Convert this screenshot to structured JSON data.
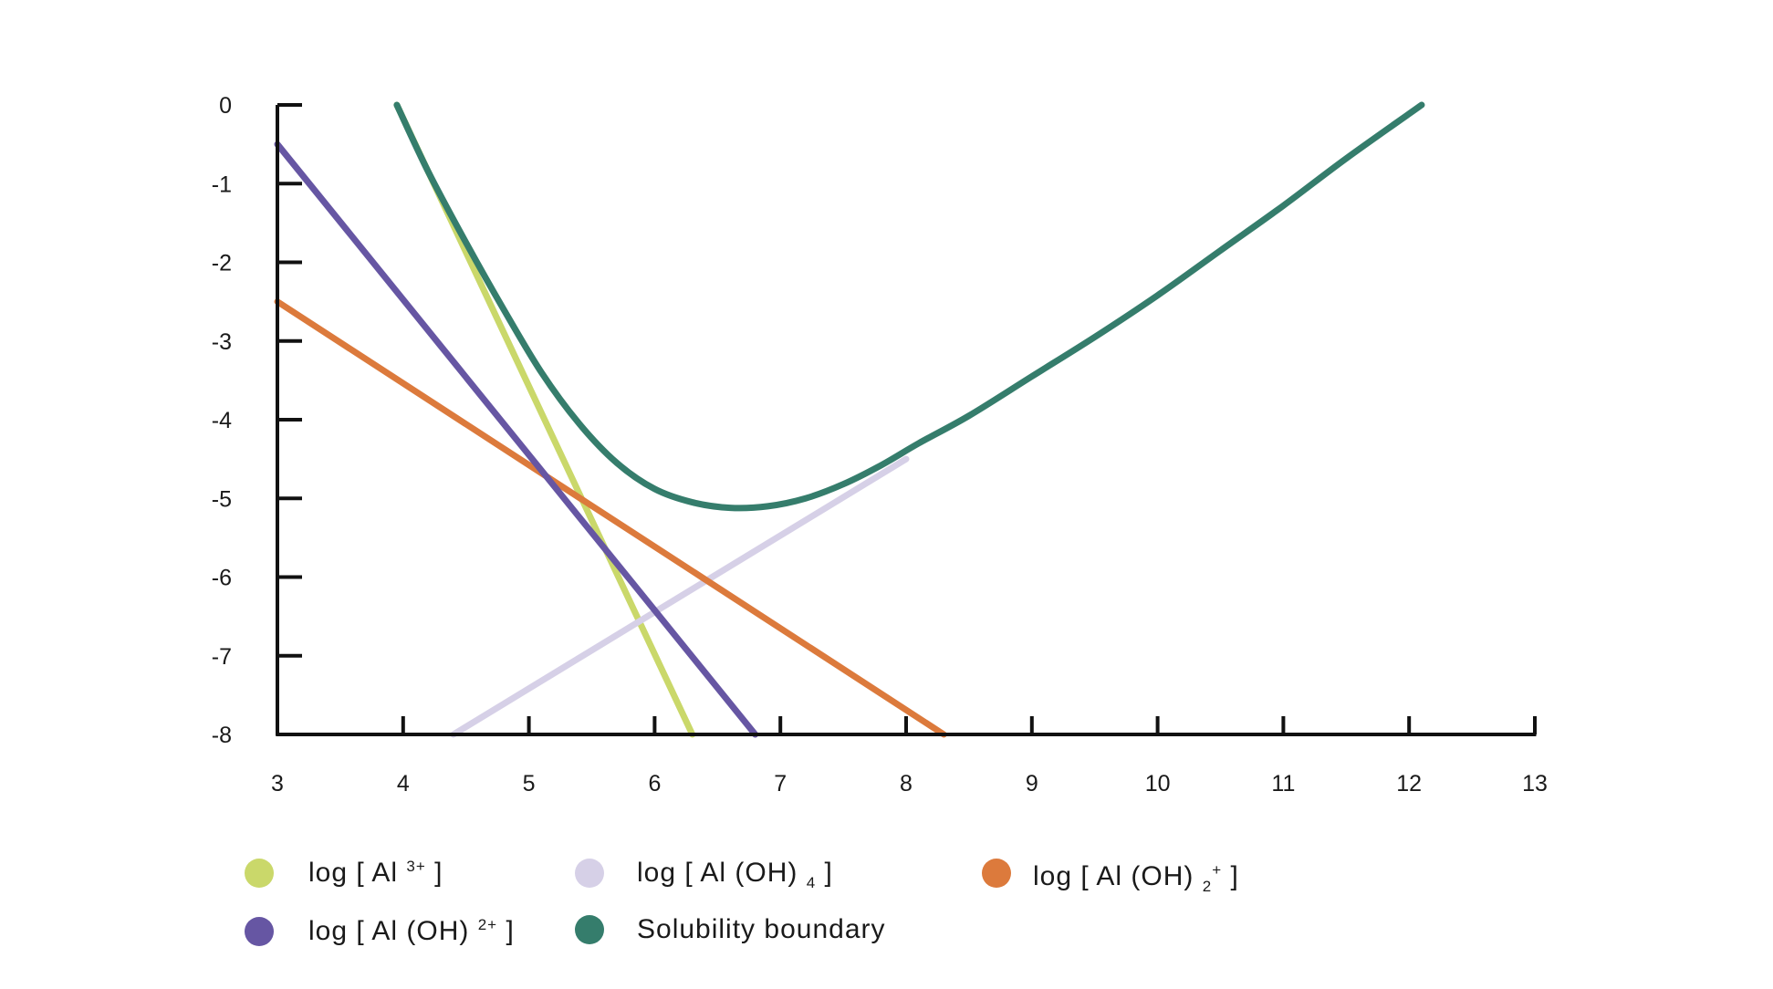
{
  "colors": {
    "al3": "#cad86a",
    "aloh4": "#d6d0e7",
    "aloh2plus_orange": "#dc7a3c",
    "aloh2plus_purple": "#6656a3",
    "solubility": "#357d6c",
    "axis": "#111111"
  },
  "chart_data": {
    "type": "line",
    "title": "",
    "xlabel": "",
    "ylabel": "",
    "xlim": [
      3,
      13
    ],
    "ylim": [
      -8,
      0
    ],
    "x_ticks": [
      "3",
      "4",
      "5",
      "6",
      "7",
      "8",
      "9",
      "10",
      "11",
      "12",
      "13"
    ],
    "y_ticks": [
      "0",
      "-1",
      "-2",
      "-3",
      "-4",
      "-5",
      "-6",
      "-7",
      "-8"
    ],
    "grid": false,
    "legend_position": "bottom",
    "series": [
      {
        "key": "al3",
        "color_key": "al3",
        "x": [
          3.95,
          6.3
        ],
        "y": [
          0.0,
          -8.0
        ]
      },
      {
        "key": "aloh4",
        "color_key": "aloh4",
        "x": [
          4.4,
          8.0
        ],
        "y": [
          -8.0,
          -4.5
        ]
      },
      {
        "key": "aloh2_orange",
        "color_key": "aloh2plus_orange",
        "x": [
          3.0,
          8.3
        ],
        "y": [
          -2.5,
          -8.0
        ]
      },
      {
        "key": "aloh2_purple",
        "color_key": "aloh2plus_purple",
        "x": [
          3.0,
          6.8
        ],
        "y": [
          -0.5,
          -8.0
        ]
      },
      {
        "key": "solubility",
        "color_key": "solubility",
        "x": [
          3.95,
          4.2,
          4.5,
          4.8,
          5.1,
          5.4,
          5.7,
          6.0,
          6.3,
          6.6,
          6.9,
          7.2,
          7.5,
          7.8,
          8.1,
          8.5,
          9.0,
          9.5,
          10.0,
          10.5,
          11.0,
          11.5,
          12.1
        ],
        "y": [
          0.0,
          -0.85,
          -1.75,
          -2.6,
          -3.4,
          -4.05,
          -4.55,
          -4.88,
          -5.05,
          -5.12,
          -5.1,
          -5.0,
          -4.82,
          -4.58,
          -4.3,
          -3.95,
          -3.45,
          -2.95,
          -2.42,
          -1.85,
          -1.28,
          -0.68,
          0.0
        ]
      }
    ]
  },
  "legend": [
    {
      "color_key": "al3",
      "parts": [
        [
          "t",
          "log [ Al "
        ],
        [
          "sup",
          "3+"
        ],
        [
          "t",
          " ]"
        ]
      ]
    },
    {
      "color_key": "aloh4",
      "parts": [
        [
          "t",
          "log [ Al (OH) "
        ],
        [
          "sub",
          "4"
        ],
        [
          "t",
          " ]"
        ]
      ]
    },
    {
      "color_key": "aloh2plus_orange",
      "parts": [
        [
          "t",
          "log [ Al (OH) "
        ],
        [
          "sub",
          "2"
        ],
        [
          "sup",
          "+"
        ],
        [
          "t",
          " ]"
        ]
      ]
    },
    {
      "color_key": "aloh2plus_purple",
      "parts": [
        [
          "t",
          "log [ Al (OH) "
        ],
        [
          "sup",
          "2+"
        ],
        [
          "t",
          " ]"
        ]
      ]
    },
    {
      "color_key": "solubility",
      "parts": [
        [
          "t",
          "Solubility boundary"
        ]
      ]
    }
  ]
}
